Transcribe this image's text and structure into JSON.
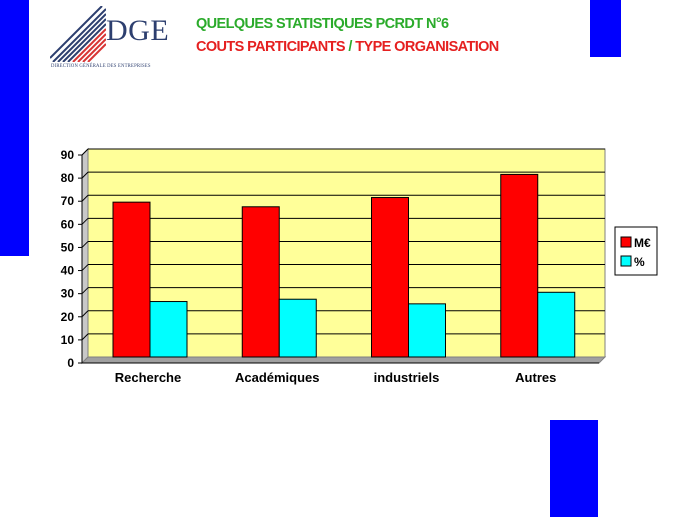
{
  "header": {
    "logo_text": "DGE",
    "logo_subtitle": "DIRECTION GÉNÉRALE DES ENTREPRISES",
    "title_line1": "QUELQUES STATISTIQUES PCRDT N°6",
    "title_line2_a": "COUTS PARTICIPANTS ",
    "title_line2_slash": "/",
    "title_line2_b": " TYPE ORGANISATION"
  },
  "colors": {
    "accent_blue": "#0000ff",
    "plot_background": "#ffff99",
    "series_meur": "#ff0000",
    "series_percent": "#00ffff",
    "title_green": "#2bab2b",
    "title_red": "#e52020"
  },
  "chart_data": {
    "type": "bar",
    "categories": [
      "Recherche",
      "Académiques",
      "industriels",
      "Autres"
    ],
    "series": [
      {
        "name": "M€",
        "values": [
          67,
          65,
          69,
          79
        ]
      },
      {
        "name": "%",
        "values": [
          24,
          25,
          23,
          28
        ]
      }
    ],
    "title": "",
    "xlabel": "",
    "ylabel": "",
    "ylim": [
      0,
      90
    ],
    "yticks": [
      0,
      10,
      20,
      30,
      40,
      50,
      60,
      70,
      80,
      90
    ],
    "grid": true,
    "legend": "right"
  }
}
